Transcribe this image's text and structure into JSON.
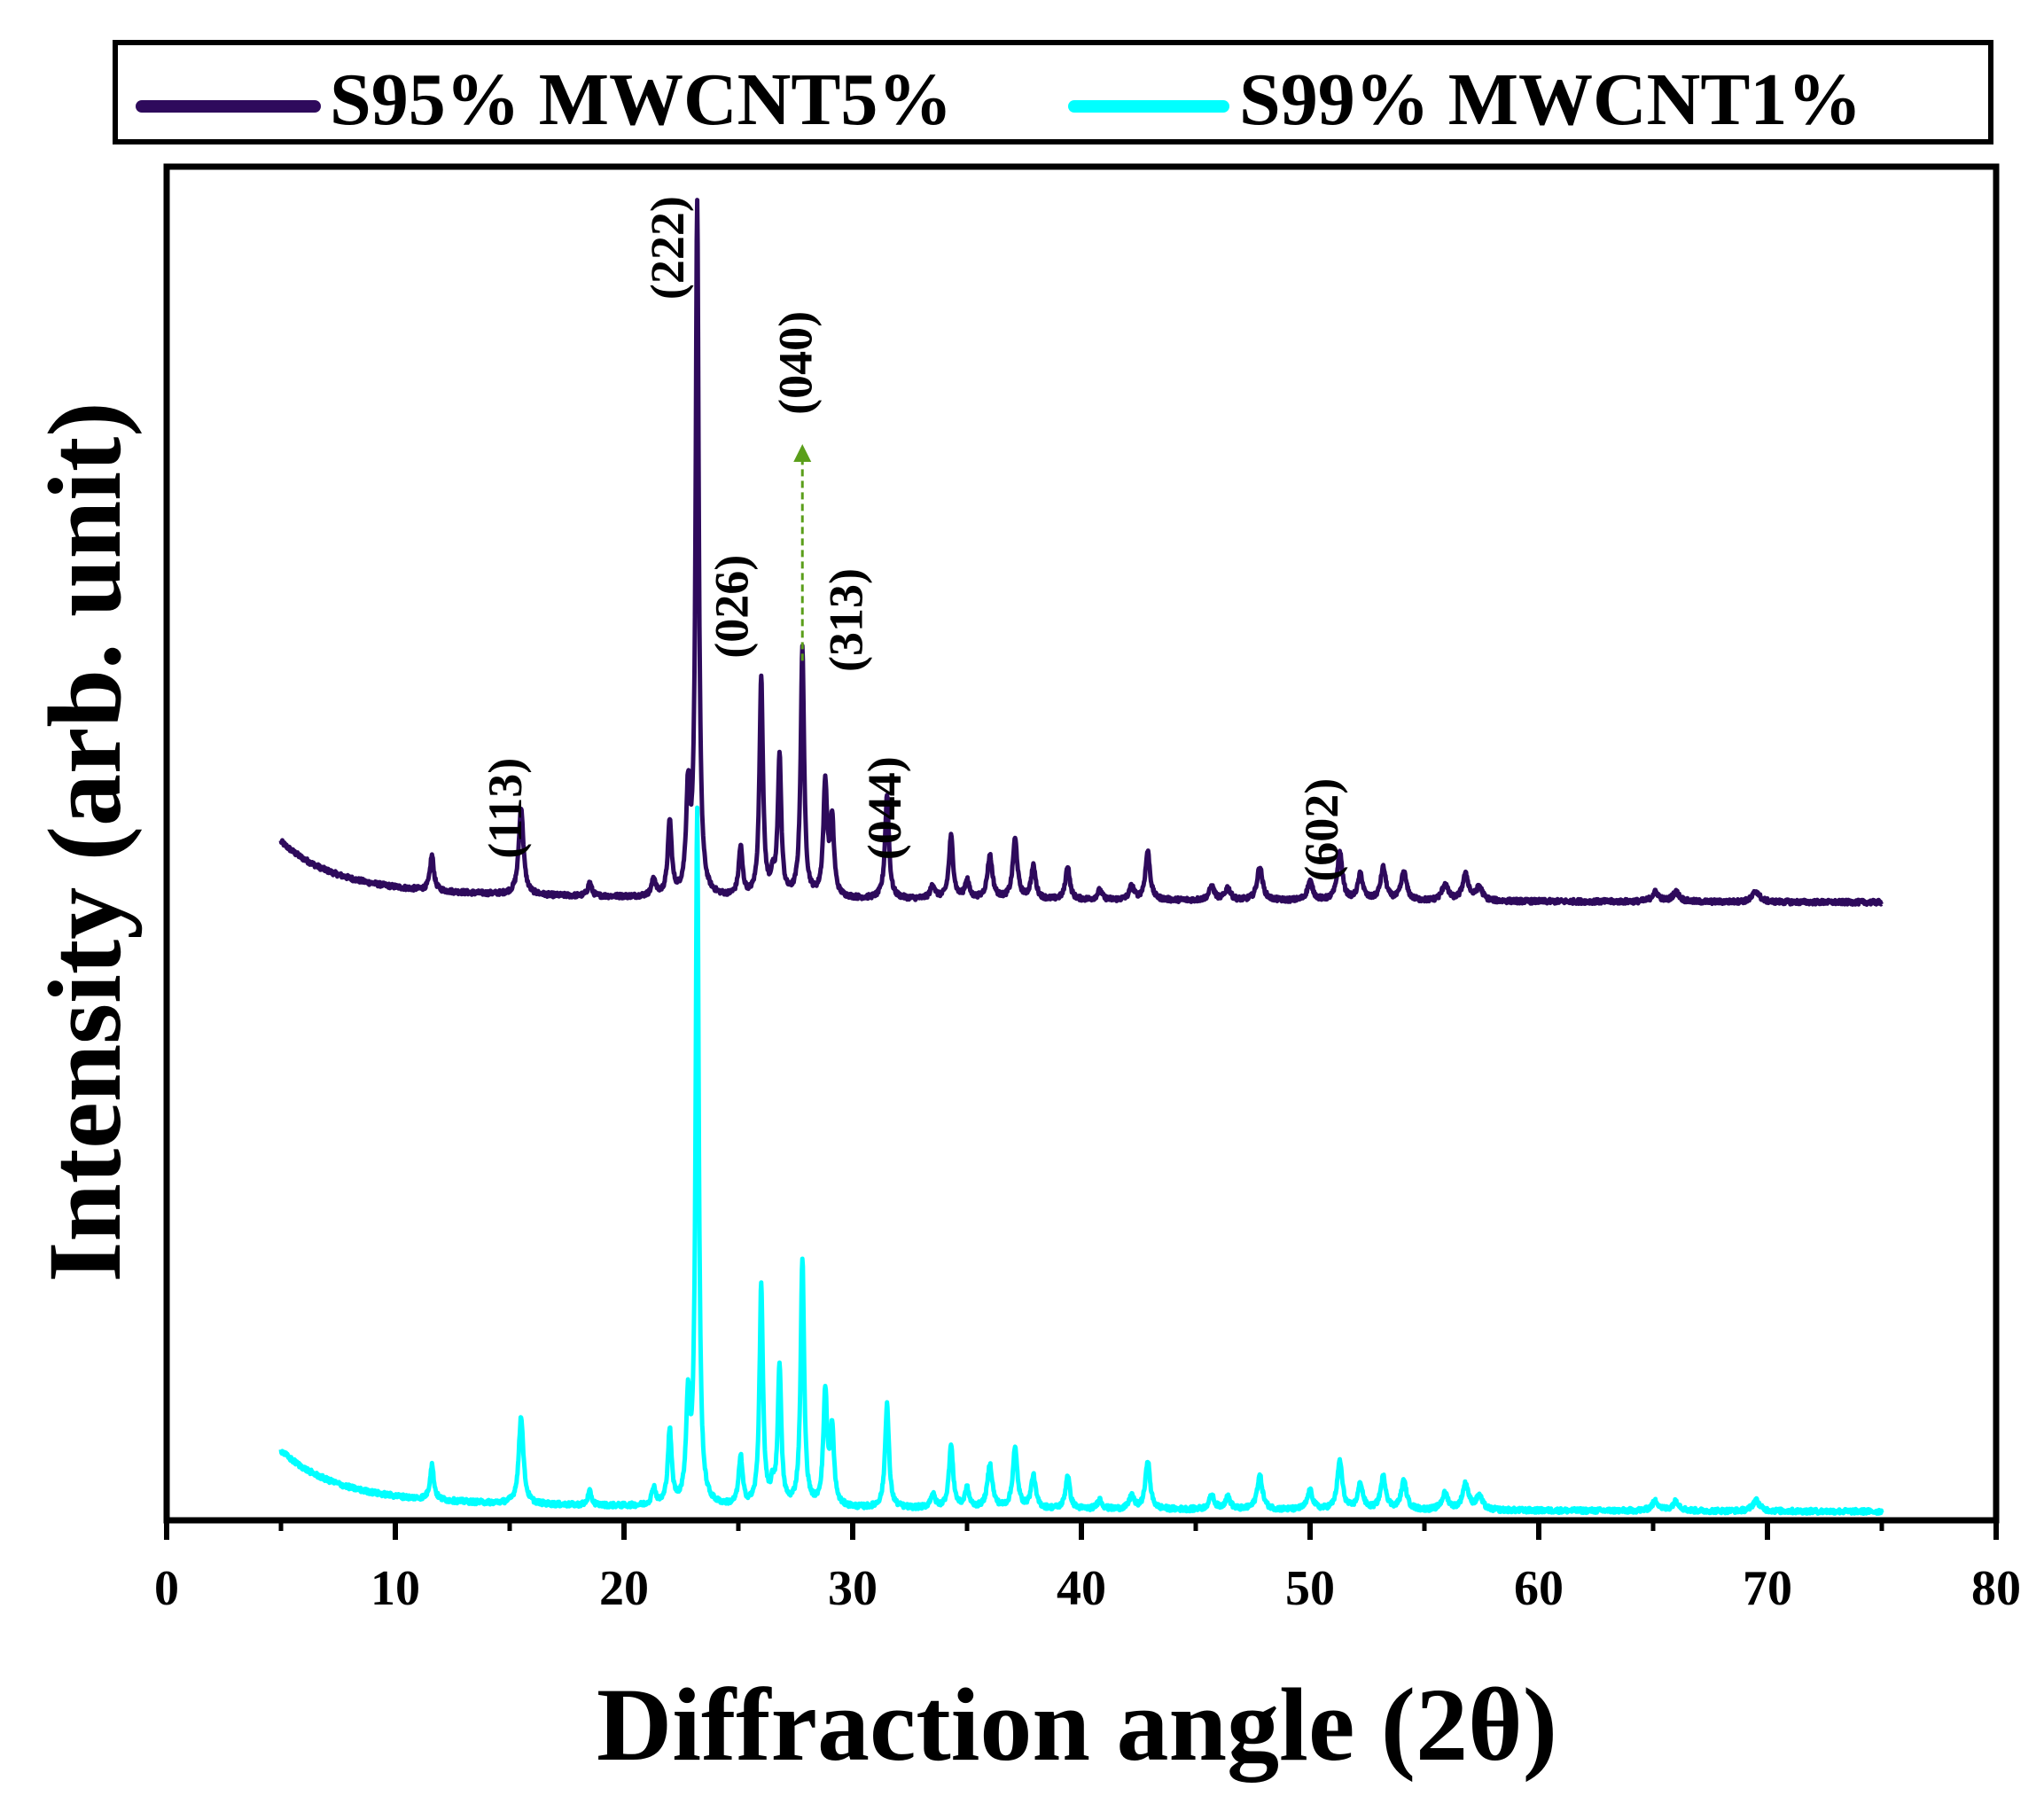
{
  "chart_data": {
    "type": "line",
    "xlabel": "Diffraction angle (2θ)",
    "ylabel": "Intensity (arb. unit)",
    "xlim": [
      0,
      80
    ],
    "ylim": [
      0,
      100
    ],
    "xticks": [
      0,
      10,
      20,
      30,
      40,
      50,
      60,
      70,
      80
    ],
    "xtick_labels": [
      "0",
      "10",
      "20",
      "30",
      "40",
      "50",
      "60",
      "70",
      "80"
    ],
    "grid": false,
    "legend_position": "top (above plot)",
    "x_range_measured": [
      5,
      75
    ],
    "peaks": [
      {
        "x": 11.6,
        "h": 2.6,
        "w": 0.1
      },
      {
        "x": 15.5,
        "h": 6.5,
        "w": 0.12
      },
      {
        "x": 18.5,
        "h": 1.0,
        "w": 0.1
      },
      {
        "x": 21.3,
        "h": 1.3,
        "w": 0.1
      },
      {
        "x": 22.0,
        "h": 5.5,
        "w": 0.1
      },
      {
        "x": 22.8,
        "h": 7.3,
        "w": 0.1
      },
      {
        "x": 23.2,
        "h": 51,
        "w": 0.08
      },
      {
        "x": 25.1,
        "h": 3.6,
        "w": 0.1
      },
      {
        "x": 26.0,
        "h": 16.3,
        "w": 0.09
      },
      {
        "x": 26.5,
        "h": 1.2,
        "w": 0.1
      },
      {
        "x": 26.8,
        "h": 10.3,
        "w": 0.09
      },
      {
        "x": 27.8,
        "h": 18.3,
        "w": 0.09
      },
      {
        "x": 28.8,
        "h": 8.3,
        "w": 0.1
      },
      {
        "x": 29.1,
        "h": 5.5,
        "w": 0.1
      },
      {
        "x": 31.5,
        "h": 7.7,
        "w": 0.1
      },
      {
        "x": 33.5,
        "h": 1.0,
        "w": 0.12
      },
      {
        "x": 34.3,
        "h": 4.6,
        "w": 0.11
      },
      {
        "x": 35.0,
        "h": 1.4,
        "w": 0.11
      },
      {
        "x": 36.0,
        "h": 3.2,
        "w": 0.13
      },
      {
        "x": 37.1,
        "h": 4.4,
        "w": 0.12
      },
      {
        "x": 37.9,
        "h": 2.4,
        "w": 0.12
      },
      {
        "x": 39.4,
        "h": 2.5,
        "w": 0.11
      },
      {
        "x": 40.8,
        "h": 0.7,
        "w": 0.12
      },
      {
        "x": 42.2,
        "h": 1.0,
        "w": 0.12
      },
      {
        "x": 42.9,
        "h": 3.6,
        "w": 0.12
      },
      {
        "x": 45.7,
        "h": 1.0,
        "w": 0.14
      },
      {
        "x": 46.4,
        "h": 0.9,
        "w": 0.14
      },
      {
        "x": 47.8,
        "h": 2.5,
        "w": 0.14
      },
      {
        "x": 50.0,
        "h": 1.4,
        "w": 0.14
      },
      {
        "x": 51.3,
        "h": 3.6,
        "w": 0.13
      },
      {
        "x": 52.2,
        "h": 1.9,
        "w": 0.13
      },
      {
        "x": 53.2,
        "h": 2.4,
        "w": 0.14
      },
      {
        "x": 54.1,
        "h": 2.1,
        "w": 0.14
      },
      {
        "x": 55.9,
        "h": 1.2,
        "w": 0.16
      },
      {
        "x": 56.8,
        "h": 1.9,
        "w": 0.16
      },
      {
        "x": 57.4,
        "h": 1.0,
        "w": 0.16
      },
      {
        "x": 65.1,
        "h": 0.7,
        "w": 0.18
      },
      {
        "x": 66.0,
        "h": 0.7,
        "w": 0.18
      },
      {
        "x": 69.5,
        "h": 0.8,
        "w": 0.18
      }
    ],
    "series": [
      {
        "name": "S95% MWCNT5%",
        "color": "#2e0a5c",
        "offset": 45
      },
      {
        "name": "S99% MWCNT1%",
        "color": "#00ffff",
        "offset": 0
      }
    ],
    "annotations": [
      {
        "text": "(113)",
        "x": 15.5,
        "y": 52.6
      },
      {
        "text": "(222)",
        "x": 22.6,
        "y": 94.0
      },
      {
        "text": "(026)",
        "x": 25.4,
        "y": 67.5
      },
      {
        "text": "(040)",
        "x": 28.2,
        "y": 85.5
      },
      {
        "text": "(313)",
        "x": 30.4,
        "y": 66.5
      },
      {
        "text": "(044)",
        "x": 32.1,
        "y": 52.6
      },
      {
        "text": "(602)",
        "x": 51.2,
        "y": 51.0
      }
    ],
    "arrow": {
      "x": 27.8,
      "y_from": 63.5,
      "y_to": 79.5,
      "color": "#5a9e1a"
    }
  }
}
